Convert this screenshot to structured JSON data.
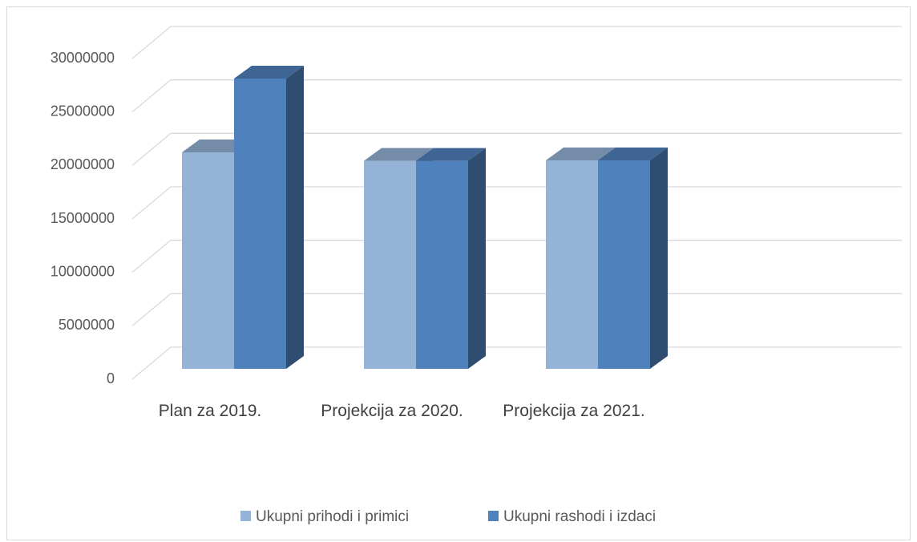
{
  "chart_data": {
    "type": "bar3d",
    "categories": [
      "Plan za 2019.",
      "Projekcija za 2020.",
      "Projekcija za 2021."
    ],
    "series": [
      {
        "name": "Ukupni prihodi i primici",
        "color": "#95b3d7",
        "values": [
          20250000,
          19450000,
          19500000
        ]
      },
      {
        "name": "Ukupni rashodi i izdaci",
        "color": "#4f81bd",
        "values": [
          27150000,
          19450000,
          19500000
        ]
      }
    ],
    "ylim": [
      0,
      30000000
    ],
    "yticks": [
      0,
      5000000,
      10000000,
      15000000,
      20000000,
      25000000,
      30000000
    ],
    "grid": true,
    "legend": "bottom"
  }
}
